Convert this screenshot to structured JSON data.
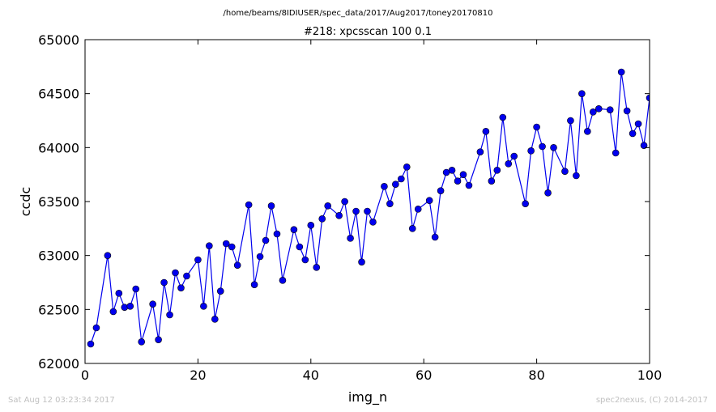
{
  "footer": {
    "timestamp": "Sat Aug 12 03:23:34 2017",
    "credit": "spec2nexus, (C) 2014-2017"
  },
  "chart_data": {
    "type": "line",
    "title": "#218: xpcsscan 100 0.1",
    "suptitle": "/home/beams/8IDIUSER/spec_data/2017/Aug2017/toney20170810",
    "xlabel": "img_n",
    "ylabel": "ccdc",
    "xlim": [
      0,
      100
    ],
    "ylim": [
      62000,
      65000
    ],
    "xticks": [
      0,
      20,
      40,
      60,
      80,
      100
    ],
    "yticks": [
      62000,
      62500,
      63000,
      63500,
      64000,
      64500,
      65000
    ],
    "grid": false,
    "color": "#0000ee",
    "series": [
      {
        "name": "",
        "x": [
          1,
          2,
          4,
          5,
          6,
          7,
          8,
          9,
          10,
          12,
          13,
          14,
          15,
          16,
          17,
          18,
          20,
          21,
          22,
          23,
          24,
          25,
          26,
          27,
          29,
          30,
          31,
          32,
          33,
          34,
          35,
          37,
          38,
          39,
          40,
          41,
          42,
          43,
          45,
          46,
          47,
          48,
          49,
          50,
          51,
          53,
          54,
          55,
          56,
          57,
          58,
          59,
          61,
          62,
          63,
          64,
          65,
          66,
          67,
          68,
          70,
          71,
          72,
          73,
          74,
          75,
          76,
          78,
          79,
          80,
          81,
          82,
          83,
          85,
          86,
          87,
          88,
          89,
          90,
          91,
          93,
          94,
          95,
          96,
          97,
          98,
          99,
          100
        ],
        "y": [
          62180,
          62330,
          63000,
          62480,
          62650,
          62520,
          62530,
          62690,
          62200,
          62550,
          62220,
          62750,
          62450,
          62840,
          62700,
          62810,
          62960,
          62530,
          63090,
          62410,
          62670,
          63110,
          63080,
          62910,
          63470,
          62730,
          62990,
          63140,
          63460,
          63200,
          62770,
          63240,
          63080,
          62960,
          63280,
          62890,
          63340,
          63460,
          63370,
          63500,
          63160,
          63410,
          62940,
          63410,
          63310,
          63640,
          63480,
          63660,
          63710,
          63820,
          63250,
          63430,
          63510,
          63170,
          63600,
          63770,
          63790,
          63690,
          63750,
          63650,
          63960,
          64150,
          63690,
          63790,
          64280,
          63850,
          63920,
          63480,
          63970,
          64190,
          64010,
          63580,
          64000,
          63780,
          64250,
          63740,
          64500,
          64150,
          64330,
          64360,
          64350,
          63950,
          64700,
          64340,
          64130,
          64220,
          64020,
          64460
        ]
      }
    ]
  }
}
